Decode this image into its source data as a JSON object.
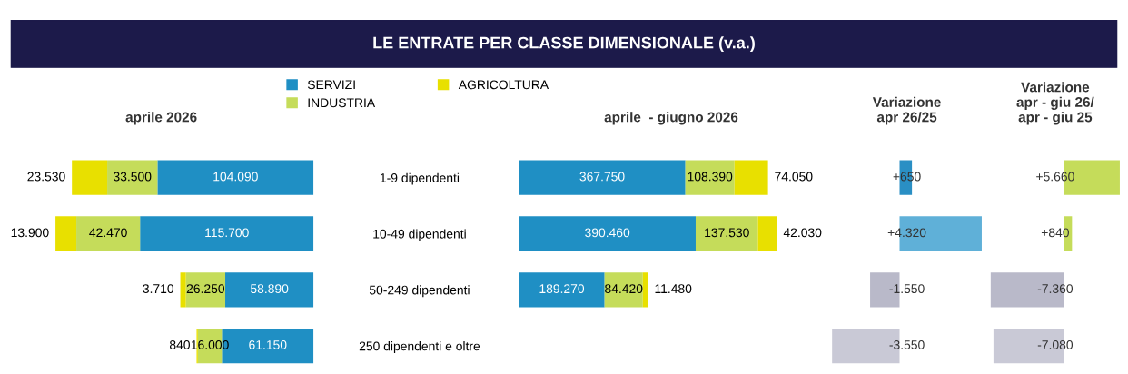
{
  "chart_data": [
    {
      "type": "other",
      "title": "LE ENTRATE PER CLASSE DIMENSIONALE (v.a.)"
    },
    {
      "type": "bar",
      "orientation": "horizontal",
      "stacked": true,
      "subtitle": "aprile 2026",
      "categories": [
        "1-9 dipendenti",
        "10-49 dipendenti",
        "50-249 dipendenti",
        "250 dipendenti e oltre"
      ],
      "tick_labels": "y",
      "legend": "top",
      "series": [
        {
          "name": "SERVIZI",
          "color": "#1f8fc4",
          "values": [
            104090,
            115700,
            58890,
            61150
          ],
          "value_labels": [
            "104.090",
            "115.700",
            "58.890",
            "61.150"
          ]
        },
        {
          "name": "INDUSTRIA",
          "color": "#c5dc5a",
          "values": [
            33500,
            42470,
            26250,
            16000
          ],
          "value_labels": [
            "33.500",
            "42.470",
            "26.250",
            "16.000"
          ]
        },
        {
          "name": "AGRICOLTURA",
          "color": "#e8e000",
          "values": [
            23530,
            13900,
            3710,
            840
          ],
          "value_labels": [
            "23.530",
            "13.900",
            "3.710",
            "840"
          ]
        }
      ]
    },
    {
      "type": "bar",
      "orientation": "horizontal",
      "stacked": true,
      "subtitle": "aprile  - giugno 2026",
      "categories": [
        null,
        null,
        null,
        null
      ],
      "tick_labels": false,
      "series": [
        {
          "color": "#1f8fc4",
          "values": [
            367750,
            390460,
            189270,
            null
          ],
          "value_labels": [
            "367.750",
            "390.460",
            "189.270",
            null
          ]
        },
        {
          "color": "#c5dc5a",
          "values": [
            108390,
            137530,
            84420,
            null
          ],
          "value_labels": [
            "108.390",
            "137.530",
            "84.420",
            null
          ]
        },
        {
          "color": "#e8e000",
          "values": [
            74050,
            42030,
            11480,
            null
          ],
          "value_labels": [
            "74.050",
            "42.030",
            "11.480",
            null
          ]
        }
      ]
    },
    {
      "type": "bar",
      "orientation": "horizontal",
      "subtitle": "Variazione\napr 26/25",
      "categories": [
        null,
        null,
        null,
        null
      ],
      "tick_labels": false,
      "values": [
        650,
        4320,
        -1550,
        -3550
      ],
      "colors": [
        "#2a8fc4",
        "#5fb0d8",
        "#b9b9c9",
        "#c9c9d6"
      ],
      "value_labels": [
        "+650",
        "+4.320",
        "-1.550",
        "-3.550"
      ]
    },
    {
      "type": "bar",
      "orientation": "horizontal",
      "subtitle": "Variazione\napr - giu 26/\napr - giu 25",
      "categories": [
        null,
        null,
        null,
        null
      ],
      "tick_labels": false,
      "values": [
        5660,
        840,
        -7360,
        -7080
      ],
      "colors": [
        "#c5dc5a",
        "#c5dc5a",
        "#b9b9c9",
        "#c9c9d6"
      ],
      "value_labels": [
        "+5.660",
        "+840",
        "-7.360",
        "-7.080"
      ]
    }
  ]
}
